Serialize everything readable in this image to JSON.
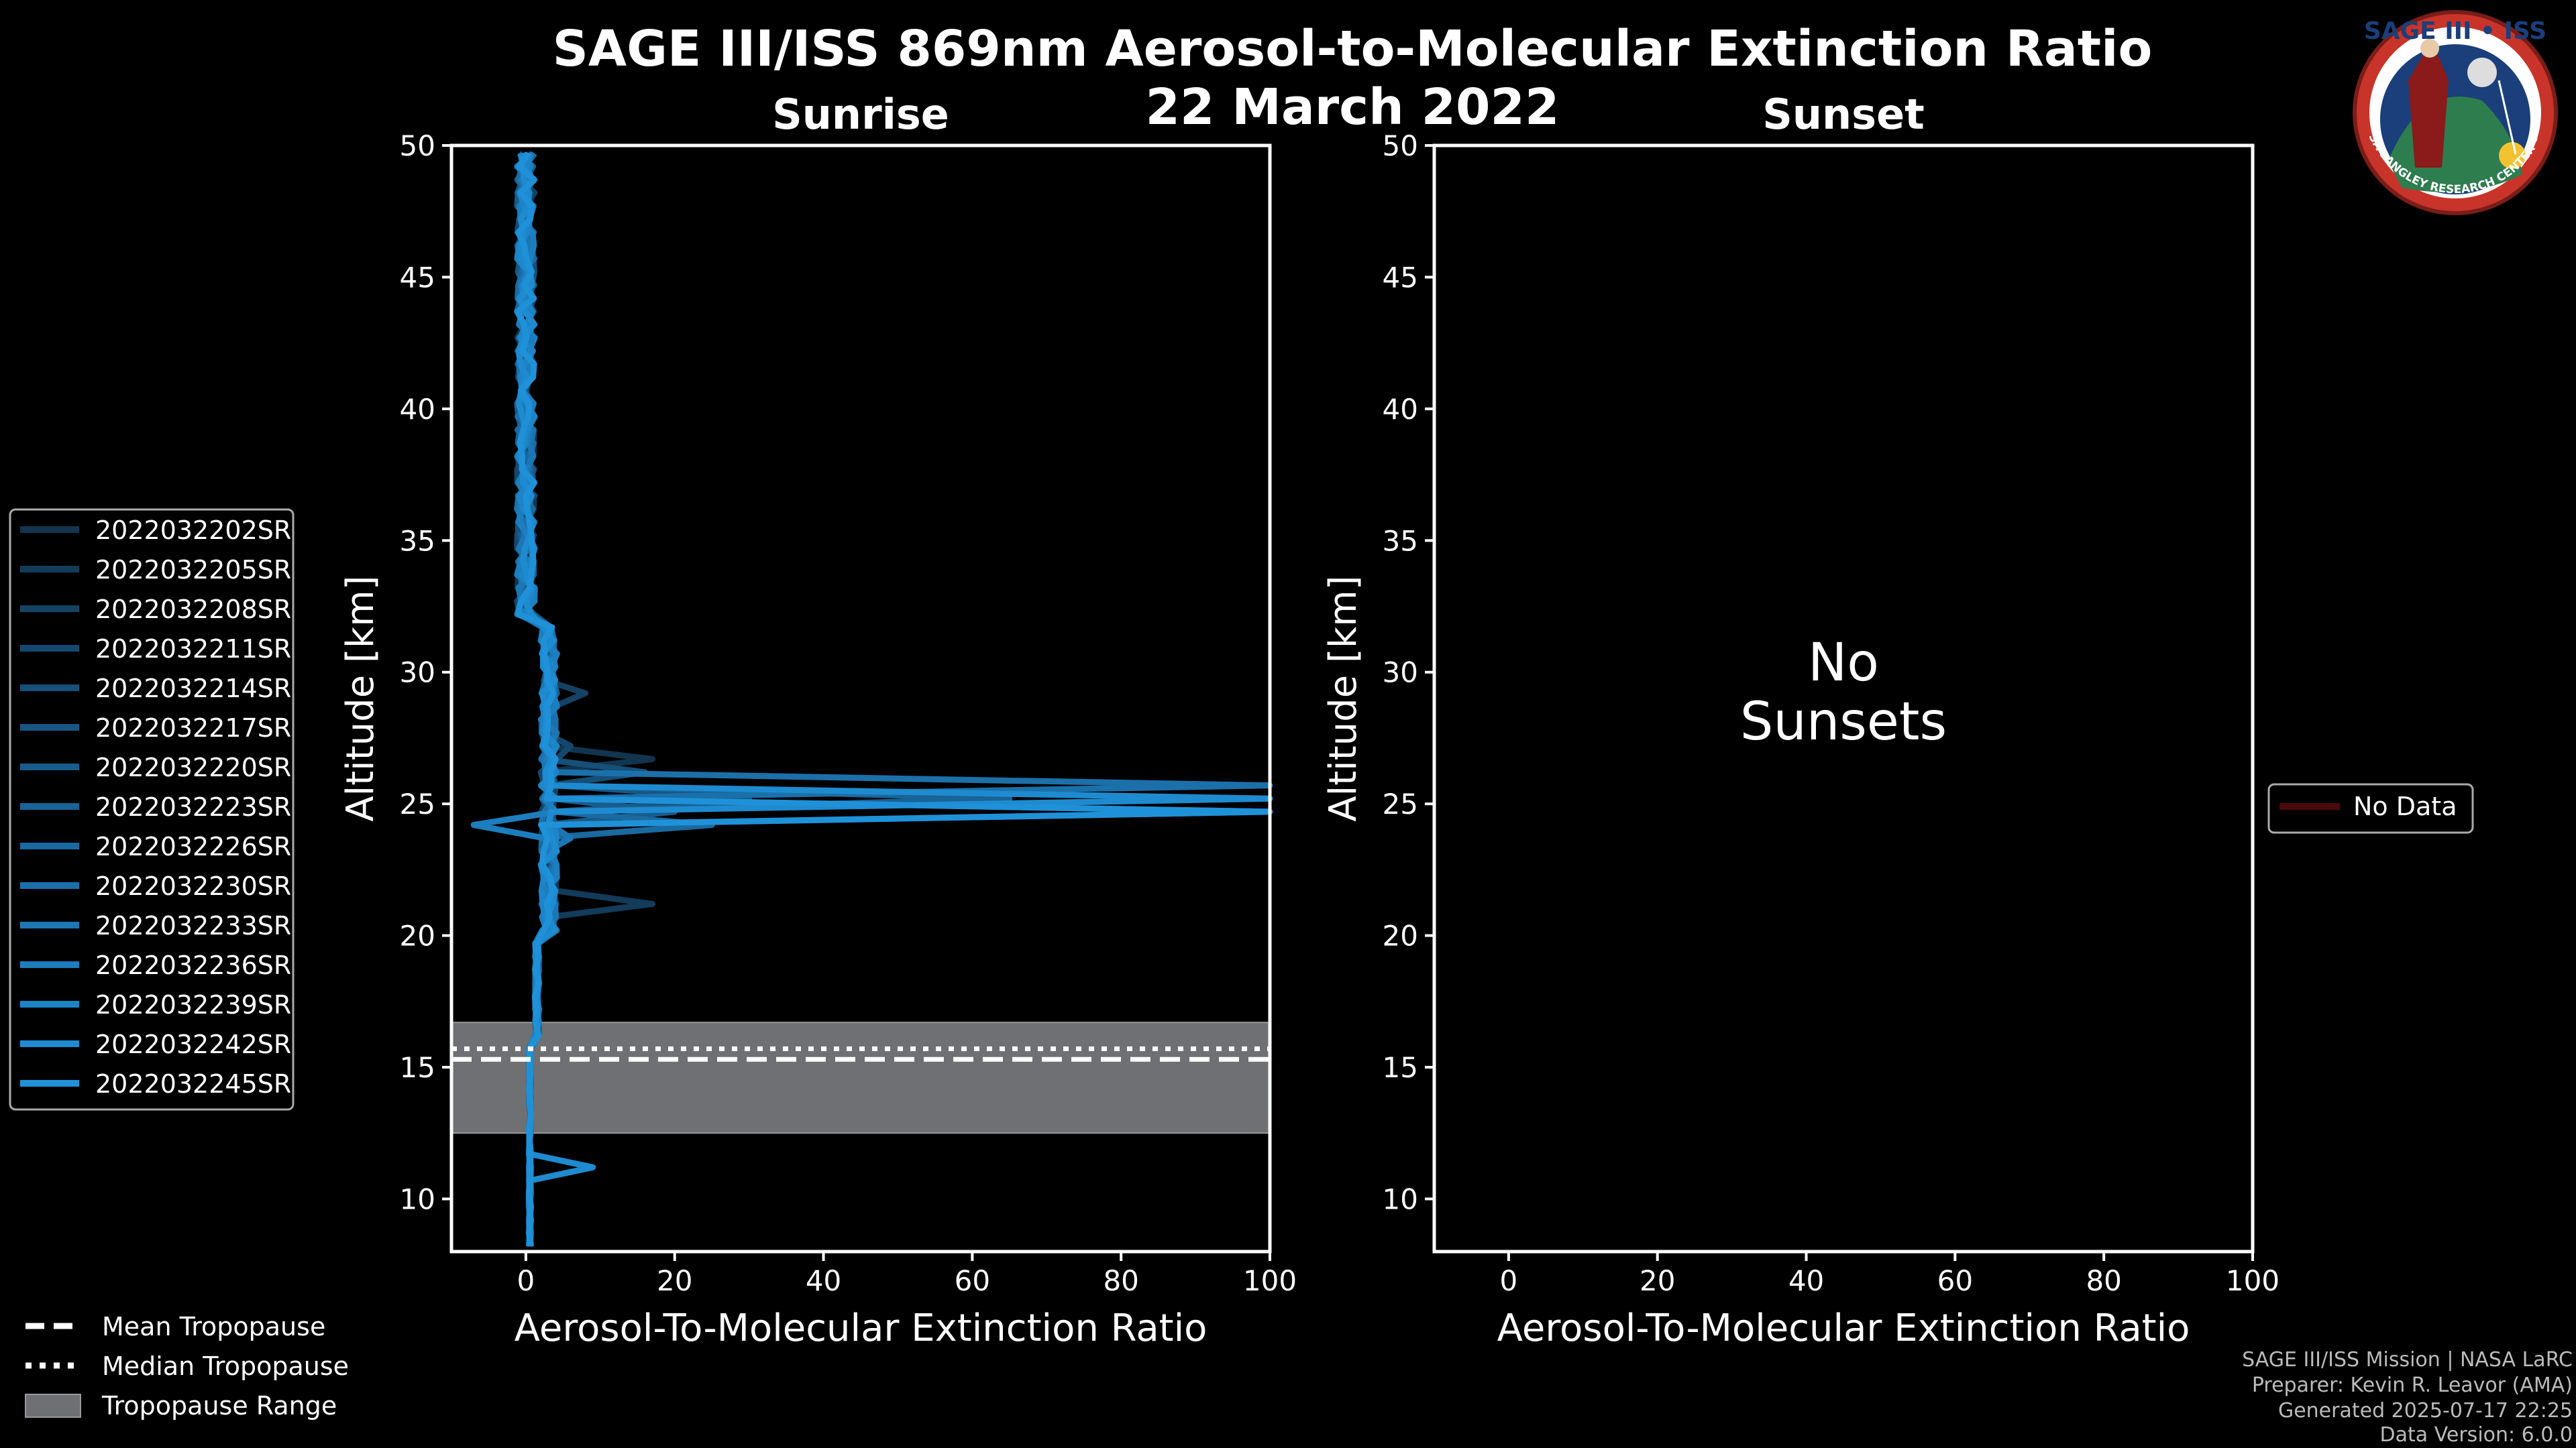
{
  "chart_data": {
    "type": "line",
    "title": "SAGE III/ISS 869nm Aerosol-to-Molecular Extinction Ratio",
    "date": "22 March 2022",
    "panels": [
      {
        "id": "sunrise",
        "title": "Sunrise",
        "xlabel": "Aerosol-To-Molecular Extinction Ratio",
        "ylabel": "Altitude [km]",
        "xlim": [
          -10,
          100
        ],
        "ylim": [
          8,
          50
        ],
        "xticks": [
          0,
          20,
          40,
          60,
          80,
          100
        ],
        "yticks": [
          10,
          15,
          20,
          25,
          30,
          35,
          40,
          45,
          50
        ],
        "tropopause": {
          "mean": 15.3,
          "median": 15.7,
          "range": [
            12.5,
            16.7
          ]
        },
        "series": [
          {
            "name": "2022032202SR",
            "color": "#12344f",
            "spike": [
              [
                26.5,
                17
              ]
            ]
          },
          {
            "name": "2022032205SR",
            "color": "#133b5a",
            "spike": [
              [
                21.0,
                17
              ]
            ]
          },
          {
            "name": "2022032208SR",
            "color": "#144264",
            "spike": [
              [
                29.0,
                8
              ]
            ]
          },
          {
            "name": "2022032211SR",
            "color": "#15486e",
            "spike": [
              [
                27.0,
                6
              ]
            ]
          },
          {
            "name": "2022032214SR",
            "color": "#164f78",
            "spike": [
              [
                26.0,
                16
              ]
            ]
          },
          {
            "name": "2022032217SR",
            "color": "#175682",
            "spike": [
              [
                25.3,
                30
              ]
            ]
          },
          {
            "name": "2022032220SR",
            "color": "#185c8c",
            "spike": [
              [
                24.5,
                20
              ]
            ]
          },
          {
            "name": "2022032223SR",
            "color": "#196396",
            "spike": [
              [
                25.0,
                65
              ]
            ]
          },
          {
            "name": "2022032226SR",
            "color": "#1a6aa0",
            "spike": [
              [
                24.3,
                25
              ]
            ]
          },
          {
            "name": "2022032230SR",
            "color": "#1b70aa",
            "spike": [
              [
                25.5,
                100
              ]
            ]
          },
          {
            "name": "2022032233SR",
            "color": "#1b77b4",
            "spike": [
              [
                23.5,
                6
              ]
            ]
          },
          {
            "name": "2022032236SR",
            "color": "#1c7ebe",
            "spike": [
              [
                24.1,
                -7
              ]
            ]
          },
          {
            "name": "2022032239SR",
            "color": "#1d84c8",
            "spike": [
              [
                24.6,
                100
              ]
            ]
          },
          {
            "name": "2022032242SR",
            "color": "#1e8bd0",
            "spike": [
              [
                25.0,
                100
              ],
              [
                11.0,
                9
              ]
            ]
          },
          {
            "name": "2022032245SR",
            "color": "#1f91d8",
            "spike": [
              [
                24.8,
                100
              ]
            ]
          }
        ]
      },
      {
        "id": "sunset",
        "title": "Sunset",
        "xlabel": "Aerosol-To-Molecular Extinction Ratio",
        "ylabel": "Altitude [km]",
        "xlim": [
          -10,
          100
        ],
        "ylim": [
          8,
          50
        ],
        "xticks": [
          0,
          20,
          40,
          60,
          80,
          100
        ],
        "yticks": [
          10,
          15,
          20,
          25,
          30,
          35,
          40,
          45,
          50
        ],
        "message_line1": "No",
        "message_line2": "Sunsets",
        "legend_entry": "No Data",
        "legend_color": "#4a0a0a"
      }
    ],
    "tropopause_legend": [
      {
        "label": "Mean Tropopause",
        "style": "dashed"
      },
      {
        "label": "Median Tropopause",
        "style": "dotted"
      },
      {
        "label": "Tropopause Range",
        "style": "patch"
      }
    ],
    "colors": {
      "range_fill": "#6e7073",
      "frame": "#ffffff"
    },
    "credits": [
      "SAGE III/ISS Mission | NASA LaRC",
      "Preparer: Kevin R. Leavor (AMA)",
      "Generated 2025-07-17 22:25",
      "Data Version: 6.0.0"
    ],
    "logo": {
      "top_text": "SAGE III • ISS",
      "ring_text": "BALL • NASA LANGLEY RESEARCH CENTER • TAS • ESA"
    }
  }
}
